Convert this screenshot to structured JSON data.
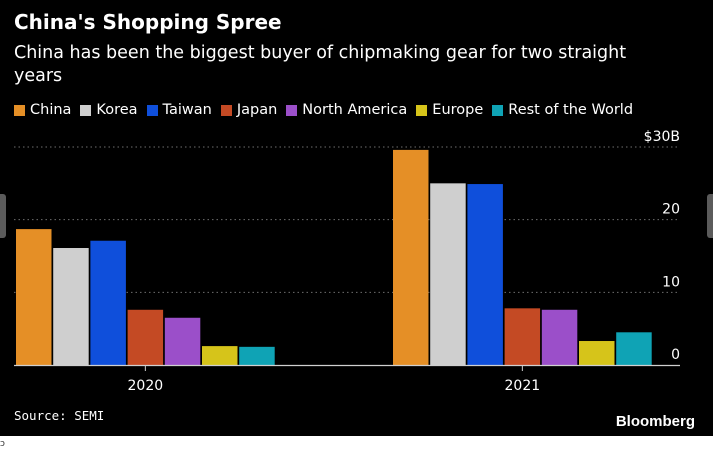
{
  "title": "China's Shopping Spree",
  "subtitle": "China has been the biggest buyer of chipmaking gear for two straight years",
  "source": "Source: SEMI",
  "brand": "Bloomberg",
  "corner_glyph": "ɔ",
  "chart_data": {
    "type": "bar",
    "categories": [
      "2020",
      "2021"
    ],
    "series": [
      {
        "name": "China",
        "color": "#e58f26",
        "values": [
          18.7,
          29.6
        ]
      },
      {
        "name": "Korea",
        "color": "#cfcfcf",
        "values": [
          16.1,
          25.0
        ]
      },
      {
        "name": "Taiwan",
        "color": "#0f4fdb",
        "values": [
          17.1,
          24.9
        ]
      },
      {
        "name": "Japan",
        "color": "#c44a24",
        "values": [
          7.6,
          7.8
        ]
      },
      {
        "name": "North America",
        "color": "#9b4fc9",
        "values": [
          6.5,
          7.6
        ]
      },
      {
        "name": "Europe",
        "color": "#d6c41a",
        "values": [
          2.6,
          3.3
        ]
      },
      {
        "name": "Rest of the World",
        "color": "#0fa3b5",
        "values": [
          2.5,
          4.5
        ]
      }
    ],
    "y_ticks": [
      {
        "value": 30,
        "label": "$30B"
      },
      {
        "value": 20,
        "label": "20"
      },
      {
        "value": 10,
        "label": "10"
      },
      {
        "value": 0,
        "label": "0"
      }
    ],
    "ylim": [
      0,
      30
    ],
    "grid": "dotted horizontal",
    "legend_position": "top-left"
  }
}
